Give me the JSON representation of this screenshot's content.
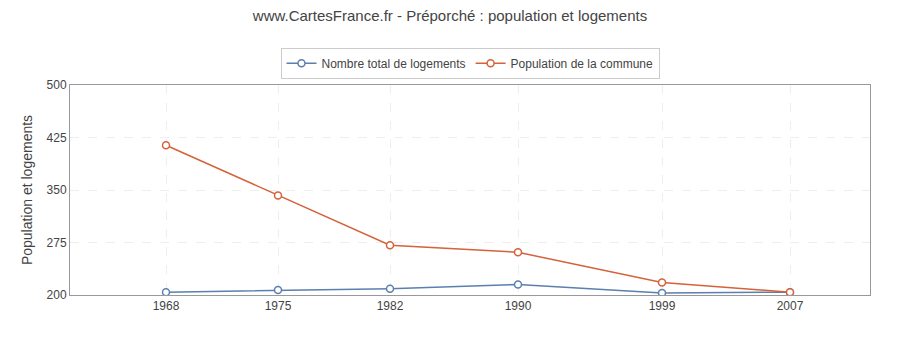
{
  "chart_data": {
    "type": "line",
    "title": "www.CartesFrance.fr - Préporché : population et logements",
    "y_label": "Population et logements",
    "x": [
      1968,
      1975,
      1982,
      1990,
      1999,
      2007
    ],
    "series": [
      {
        "name": "Nombre total de logements",
        "color": "#5b7faf",
        "values": [
          204,
          207,
          209,
          215,
          203,
          204
        ]
      },
      {
        "name": "Population de la commune",
        "color": "#d4623a",
        "values": [
          414,
          342,
          271,
          261,
          218,
          204
        ]
      }
    ],
    "xlim": [
      1962,
      2012
    ],
    "xticks": [
      1968,
      1975,
      1982,
      1990,
      1999,
      2007
    ],
    "ylim": [
      200,
      500
    ],
    "yticks": [
      200,
      275,
      350,
      425,
      500
    ],
    "grid": true,
    "legend": "top",
    "marker": "circle"
  }
}
